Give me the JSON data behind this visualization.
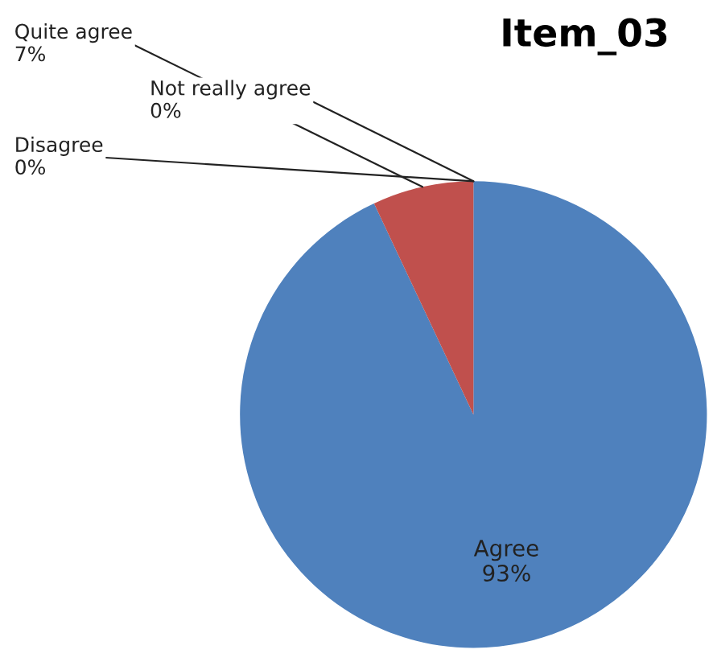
{
  "chart_data": {
    "type": "pie",
    "title": "Item_03",
    "categories": [
      "Agree",
      "Quite agree",
      "Not really agree",
      "Disagree"
    ],
    "values": [
      93,
      7,
      0,
      0
    ],
    "value_labels": [
      "93%",
      "7%",
      "0%",
      "0%"
    ],
    "colors": [
      "#4f81bd",
      "#c0504d",
      "#9bbb59",
      "#8064a2"
    ]
  }
}
